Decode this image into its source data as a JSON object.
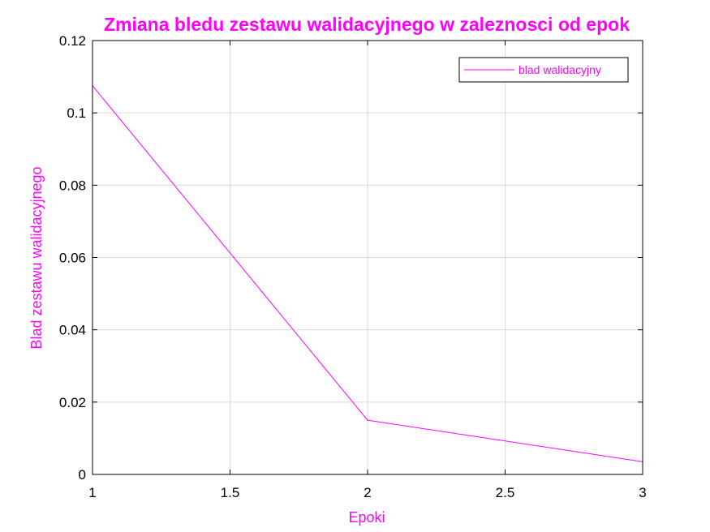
{
  "chart_data": {
    "type": "line",
    "title": "Zmiana bledu zestawu walidacyjnego w zaleznosci od epok",
    "xlabel": "Epoki",
    "ylabel": "Blad zestawu walidacyjnego",
    "xlim": [
      1,
      3
    ],
    "ylim": [
      0,
      0.12
    ],
    "xticks": [
      1,
      1.5,
      2,
      2.5,
      3
    ],
    "xtick_labels": [
      "1",
      "1.5",
      "2",
      "2.5",
      "3"
    ],
    "yticks": [
      0,
      0.02,
      0.04,
      0.06,
      0.08,
      0.1,
      0.12
    ],
    "ytick_labels": [
      "0",
      "0.02",
      "0.04",
      "0.06",
      "0.08",
      "0.1",
      "0.12"
    ],
    "grid": true,
    "legend_position": "top-right",
    "series": [
      {
        "name": "blad walidacyjny",
        "color": "#ff00ff",
        "x": [
          1,
          2,
          3
        ],
        "y": [
          0.1075,
          0.015,
          0.0035
        ]
      }
    ]
  },
  "colors": {
    "accent": "#ff00ff",
    "grid": "#d9d9d9",
    "axis": "#000000"
  }
}
